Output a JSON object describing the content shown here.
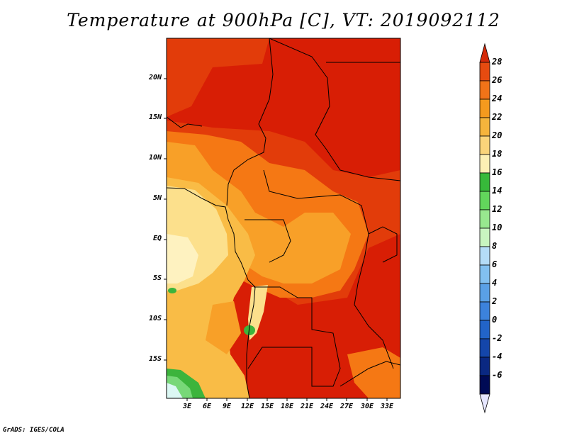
{
  "title": "Temperature at 900hPa [C], VT: 2019092112",
  "footer": "GrADS: IGES/COLA",
  "map": {
    "lat_labels": [
      "20N",
      "15N",
      "10N",
      "5N",
      "EQ",
      "5S",
      "10S",
      "15S"
    ],
    "lon_labels": [
      "3E",
      "6E",
      "9E",
      "12E",
      "15E",
      "18E",
      "21E",
      "24E",
      "27E",
      "30E",
      "33E"
    ]
  },
  "colorbar": {
    "levels": [
      "28",
      "26",
      "24",
      "22",
      "20",
      "18",
      "16",
      "14",
      "12",
      "10",
      "8",
      "6",
      "4",
      "2",
      "0",
      "-2",
      "-4",
      "-6"
    ],
    "colors": [
      "#d42a0a",
      "#e64b10",
      "#f07318",
      "#f59a1e",
      "#f5b43c",
      "#fad47a",
      "#fdf0b4",
      "#37b93a",
      "#62d65c",
      "#98e88f",
      "#c8f5c0",
      "#b4dcf7",
      "#82c0f0",
      "#5aa0e6",
      "#3c82dc",
      "#2264c8",
      "#1446aa",
      "#0a2882",
      "#000a55",
      "#e6e6ff"
    ]
  },
  "palette": {
    "deep_red": "#d81e05",
    "red_orange": "#e23c0a",
    "orange": "#f57814",
    "amber": "#f8a028",
    "light_orange": "#f9bc46",
    "pale_yellow": "#fce08c",
    "cream": "#fef2c0",
    "green": "#3cb43c",
    "light_green": "#78d878",
    "pale_cyan": "#dcf8f4"
  }
}
